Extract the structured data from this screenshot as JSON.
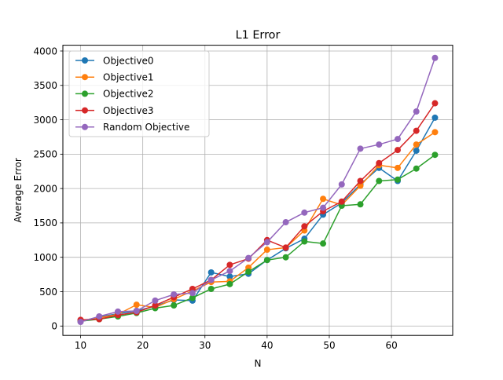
{
  "chart_data": {
    "type": "line",
    "title": "L1 Error",
    "xlabel": "N",
    "ylabel": "Average Error",
    "xlim": [
      7.15,
      69.85
    ],
    "ylim": [
      -136.3,
      4084.3
    ],
    "xticks": [
      10,
      20,
      30,
      40,
      50,
      60
    ],
    "yticks": [
      0,
      500,
      1000,
      1500,
      2000,
      2500,
      3000,
      3500,
      4000
    ],
    "grid": true,
    "legend_position": "top-left",
    "x": [
      10,
      13,
      16,
      19,
      22,
      25,
      28,
      31,
      34,
      37,
      40,
      43,
      46,
      49,
      52,
      55,
      58,
      61,
      64,
      67
    ],
    "series": [
      {
        "name": "Objective0",
        "color": "#1f77b4",
        "values": [
          70,
          130,
          180,
          220,
          290,
          380,
          370,
          780,
          720,
          760,
          960,
          1130,
          1270,
          1620,
          1790,
          2060,
          2300,
          2110,
          2550,
          3030
        ]
      },
      {
        "name": "Objective1",
        "color": "#ff7f0e",
        "values": [
          80,
          120,
          170,
          310,
          270,
          390,
          510,
          640,
          650,
          850,
          1110,
          1140,
          1390,
          1850,
          1760,
          2040,
          2340,
          2300,
          2640,
          2820
        ]
      },
      {
        "name": "Objective2",
        "color": "#2ca02c",
        "values": [
          70,
          100,
          140,
          190,
          260,
          300,
          410,
          540,
          610,
          790,
          960,
          1000,
          1230,
          1200,
          1750,
          1770,
          2110,
          2130,
          2290,
          2490
        ]
      },
      {
        "name": "Objective3",
        "color": "#d62728",
        "values": [
          90,
          100,
          160,
          200,
          300,
          420,
          540,
          670,
          890,
          980,
          1250,
          1140,
          1450,
          1670,
          1810,
          2110,
          2370,
          2560,
          2840,
          3240
        ]
      },
      {
        "name": "Random Objective",
        "color": "#9467bd",
        "values": [
          60,
          140,
          210,
          220,
          370,
          460,
          480,
          670,
          800,
          990,
          1220,
          1510,
          1650,
          1720,
          2060,
          2580,
          2640,
          2720,
          3120,
          3900
        ]
      }
    ]
  }
}
